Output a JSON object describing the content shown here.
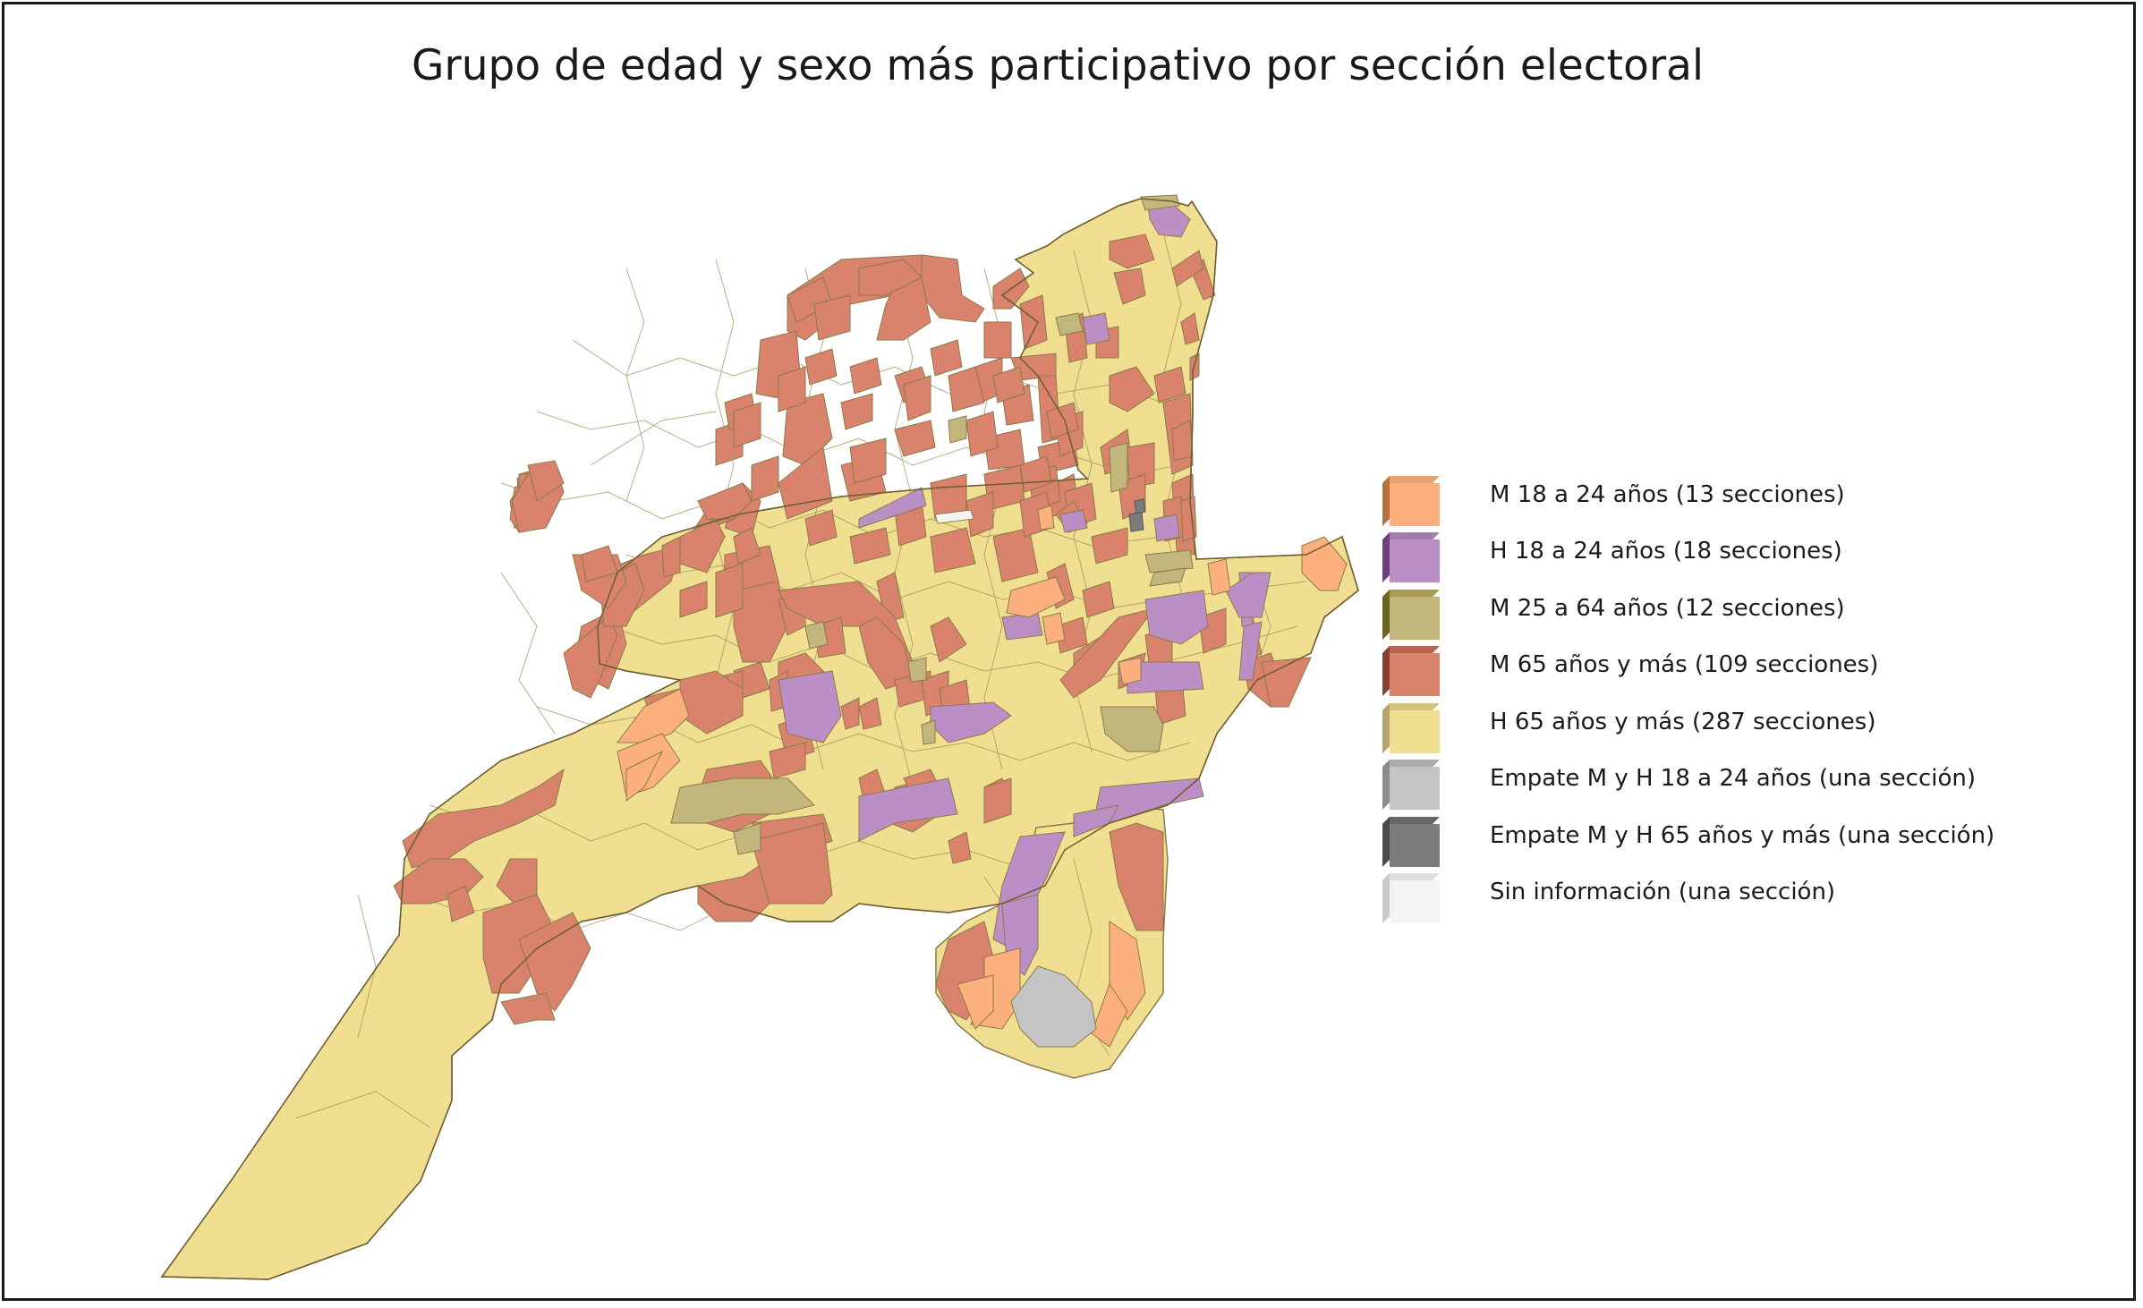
{
  "title": "Grupo de edad y sexo más participativo por sección electoral",
  "colors": {
    "m18": "#fbb07e",
    "h18": "#bb8fc6",
    "m25": "#c2b67c",
    "m65": "#d9826c",
    "h65": "#f0df91",
    "tie18": "#c4c4c4",
    "tie65": "#7c7c7c",
    "none": "#f3f3f3",
    "boundary": "#8a7a4a",
    "frame": "#1a1a1a"
  },
  "legend": {
    "items": [
      {
        "label": "M 18 a 24 años (13 secciones)",
        "color": "#fbb07e",
        "dark": "#b8703e"
      },
      {
        "label": "H 18 a 24 años (18 secciones)",
        "color": "#bb8fc6",
        "dark": "#6e3f80"
      },
      {
        "label": "M 25 a 64 años (12 secciones)",
        "color": "#c2b67c",
        "dark": "#6b6520"
      },
      {
        "label": "M 65 años y más (109 secciones)",
        "color": "#d9826c",
        "dark": "#8a4030"
      },
      {
        "label": "H 65 años y más (287 secciones)",
        "color": "#f0df91",
        "dark": "#b9a070"
      },
      {
        "label": "Empate M y H 18 a 24 años (una sección)",
        "color": "#c4c4c4",
        "dark": "#8c8c8c"
      },
      {
        "label": "Empate M y H 65 años y más (una sección)",
        "color": "#7c7c7c",
        "dark": "#4d4d4d"
      },
      {
        "label": "Sin información (una sección)",
        "color": "#f3f3f3",
        "dark": "#c9c9c9"
      }
    ]
  }
}
